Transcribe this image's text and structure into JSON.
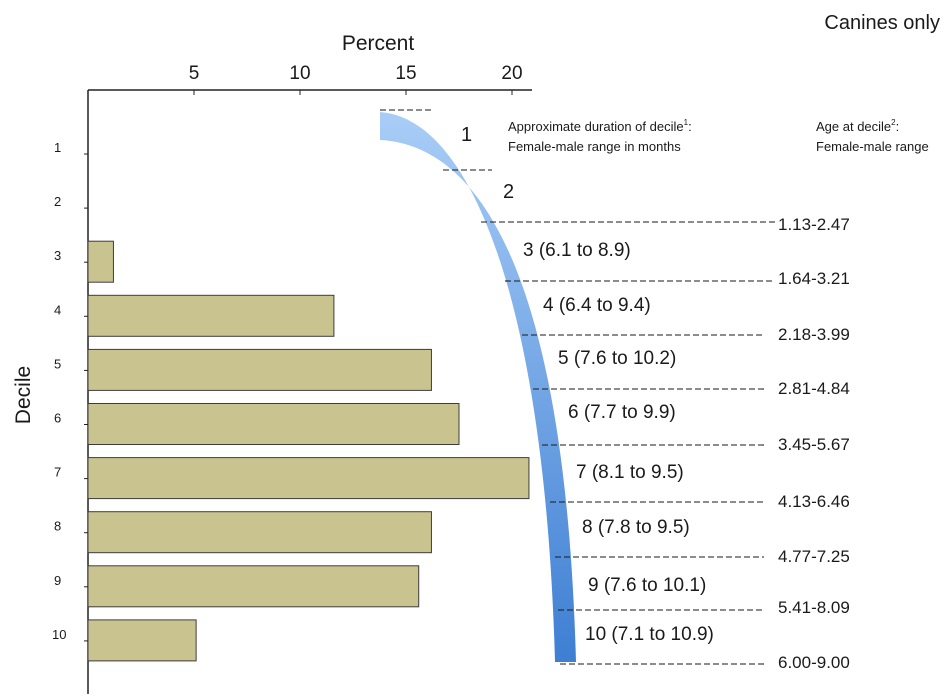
{
  "colors": {
    "bar_fill": "#c9c48f",
    "bar_stroke": "#3d3d3d",
    "band_light": "#a9cdf7",
    "band_dark": "#3e7fd3",
    "text": "#1a1a1a"
  },
  "header": {
    "corner_label": "Canines only",
    "duration_heading_line1": "Approximate duration of decile",
    "duration_heading_sup": "1",
    "duration_heading_colon": ":",
    "duration_heading_line2": "Female-male range in months",
    "age_heading_line1": "Age at decile",
    "age_heading_sup": "2",
    "age_heading_colon": ":",
    "age_heading_line2": "Female-male range"
  },
  "chart_data": {
    "type": "bar",
    "orientation": "horizontal",
    "xlabel": "Percent",
    "ylabel": "Decile",
    "xlim": [
      0,
      20
    ],
    "x_ticks": [
      "5",
      "10",
      "15",
      "20"
    ],
    "categories": [
      "1",
      "2",
      "3",
      "4",
      "5",
      "6",
      "7",
      "8",
      "9",
      "10"
    ],
    "values": [
      0,
      0,
      1.2,
      11.6,
      16.2,
      17.5,
      20.8,
      16.2,
      15.6,
      5.1
    ],
    "band_labels": [
      "1",
      "2",
      "3 (6.1 to 8.9)",
      "4 (6.4 to 9.4)",
      "5 (7.6 to 10.2)",
      "6 (7.7 to 9.9)",
      "7 (8.1 to 9.5)",
      "8 (7.8 to 9.5)",
      "9 (7.6 to 10.1)",
      "10 (7.1 to 10.9)"
    ],
    "age_labels": [
      "1.13-2.47",
      "1.64-3.21",
      "2.18-3.99",
      "2.81-4.84",
      "3.45-5.67",
      "4.13-6.46",
      "4.77-7.25",
      "5.41-8.09",
      "6.00-9.00"
    ]
  }
}
